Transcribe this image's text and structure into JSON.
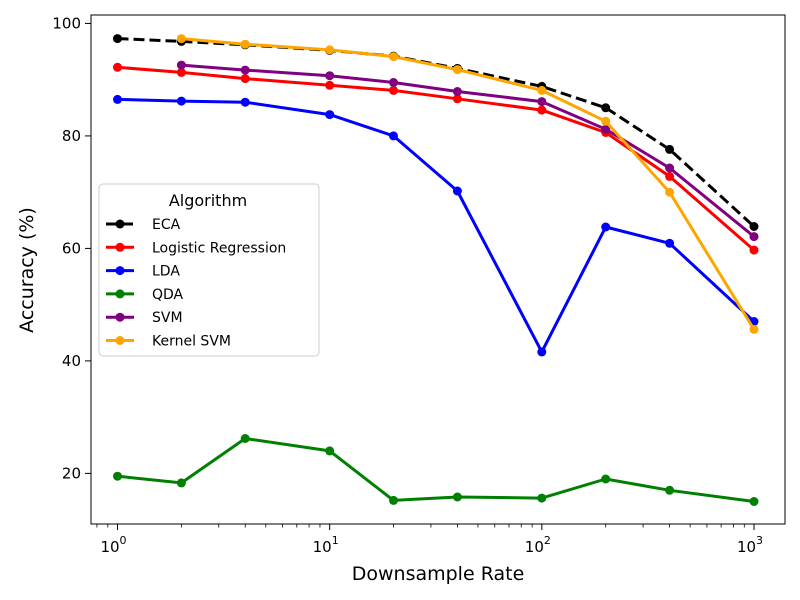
{
  "chart_data": {
    "type": "line",
    "xlabel": "Downsample Rate",
    "ylabel": "Accuracy (%)",
    "xscale": "log",
    "xlim": [
      0.75,
      1400
    ],
    "ylim": [
      11,
      101.5
    ],
    "x_ticks": [
      {
        "value": 1,
        "base": "10",
        "exp": "0"
      },
      {
        "value": 10,
        "base": "10",
        "exp": "1"
      },
      {
        "value": 100,
        "base": "10",
        "exp": "2"
      },
      {
        "value": 1000,
        "base": "10",
        "exp": "3"
      }
    ],
    "y_ticks": [
      20,
      40,
      60,
      80,
      100
    ],
    "grid": false,
    "legend": {
      "title": "Algorithm",
      "placement": "center-left"
    },
    "series": [
      {
        "name": "ECA",
        "color": "#000000",
        "dashed": true,
        "x": [
          1,
          2,
          4,
          10,
          20,
          40,
          100,
          200,
          400,
          1000
        ],
        "y": [
          97.3,
          96.8,
          96.2,
          95.2,
          94.2,
          92.0,
          88.8,
          85.0,
          77.6,
          63.9
        ]
      },
      {
        "name": "Logistic Regression",
        "color": "#ff0000",
        "dashed": false,
        "x": [
          1,
          2,
          4,
          10,
          20,
          40,
          100,
          200,
          400,
          1000
        ],
        "y": [
          92.2,
          91.3,
          90.2,
          89.0,
          88.1,
          86.6,
          84.6,
          80.6,
          72.8,
          59.7
        ]
      },
      {
        "name": "LDA",
        "color": "#0000ff",
        "dashed": false,
        "x": [
          1,
          2,
          4,
          10,
          20,
          40,
          100,
          200,
          400,
          1000
        ],
        "y": [
          86.5,
          86.2,
          86.0,
          83.8,
          80.0,
          70.2,
          41.6,
          63.8,
          60.9,
          47.0
        ]
      },
      {
        "name": "QDA",
        "color": "#008000",
        "dashed": false,
        "x": [
          1,
          2,
          4,
          10,
          20,
          40,
          100,
          200,
          400,
          1000
        ],
        "y": [
          19.5,
          18.3,
          26.2,
          24.0,
          15.2,
          15.8,
          15.6,
          19.0,
          17.0,
          15.0
        ]
      },
      {
        "name": "SVM",
        "color": "#800080",
        "dashed": false,
        "x": [
          2,
          4,
          10,
          20,
          40,
          100,
          200,
          400,
          1000
        ],
        "y": [
          92.6,
          91.7,
          90.7,
          89.5,
          87.9,
          86.1,
          81.2,
          74.3,
          62.1
        ]
      },
      {
        "name": "Kernel SVM",
        "color": "#ffa500",
        "dashed": false,
        "x": [
          2,
          4,
          10,
          20,
          40,
          100,
          200,
          400,
          1000
        ],
        "y": [
          97.3,
          96.3,
          95.3,
          94.1,
          91.8,
          88.1,
          82.6,
          70.0,
          45.6
        ]
      }
    ]
  }
}
